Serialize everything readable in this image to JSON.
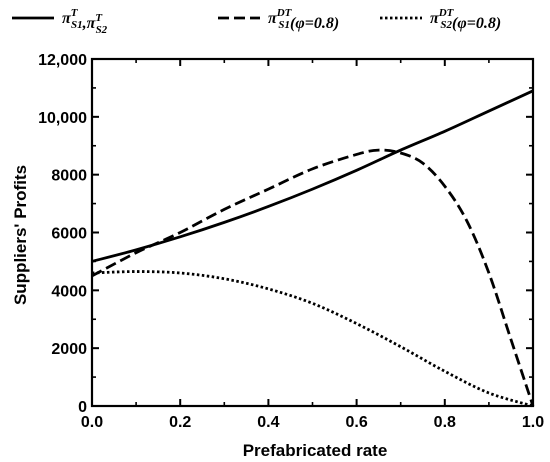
{
  "chart_data": {
    "type": "line",
    "xlabel": "Prefabricated rate",
    "ylabel": "Suppliers' Profits",
    "xlim": [
      0,
      1
    ],
    "ylim": [
      0,
      12000
    ],
    "x_ticks": [
      "0.0",
      "0.2",
      "0.4",
      "0.6",
      "0.8",
      "1.0"
    ],
    "y_ticks": [
      "0",
      "2000",
      "4000",
      "6000",
      "8000",
      "10,000",
      "12,000"
    ],
    "grid": false,
    "legend_position": "top",
    "series": [
      {
        "name": "π_S1^T, π_S2^T",
        "legend": {
          "parts": [
            [
              "π",
              "S1",
              "T"
            ],
            [
              "π",
              "S2",
              "T"
            ]
          ],
          "suffix": ""
        },
        "style": "solid",
        "x": [
          0.0,
          0.1,
          0.2,
          0.3,
          0.4,
          0.5,
          0.6,
          0.7,
          0.8,
          0.9,
          1.0
        ],
        "y": [
          5000,
          5400,
          5850,
          6350,
          6900,
          7500,
          8150,
          8850,
          9500,
          10200,
          10900
        ]
      },
      {
        "name": "π_S1^DT(φ=0.8)",
        "legend": {
          "parts": [
            [
              "π",
              "S1",
              "DT"
            ]
          ],
          "suffix": "(φ=0.8)"
        },
        "style": "dashed",
        "x": [
          0.0,
          0.1,
          0.2,
          0.3,
          0.4,
          0.5,
          0.6,
          0.65,
          0.7,
          0.75,
          0.8,
          0.85,
          0.9,
          0.95,
          1.0
        ],
        "y": [
          4500,
          5300,
          6000,
          6800,
          7500,
          8200,
          8700,
          8850,
          8750,
          8400,
          7600,
          6400,
          4600,
          2300,
          0
        ]
      },
      {
        "name": "π_S2^DT(φ=0.8)",
        "legend": {
          "parts": [
            [
              "π",
              "S2",
              "DT"
            ]
          ],
          "suffix": "(φ=0.8)"
        },
        "style": "dotted",
        "x": [
          0.0,
          0.1,
          0.2,
          0.3,
          0.4,
          0.5,
          0.6,
          0.7,
          0.8,
          0.9,
          1.0
        ],
        "y": [
          4600,
          4650,
          4600,
          4400,
          4050,
          3550,
          2850,
          2050,
          1200,
          450,
          0
        ]
      }
    ]
  }
}
